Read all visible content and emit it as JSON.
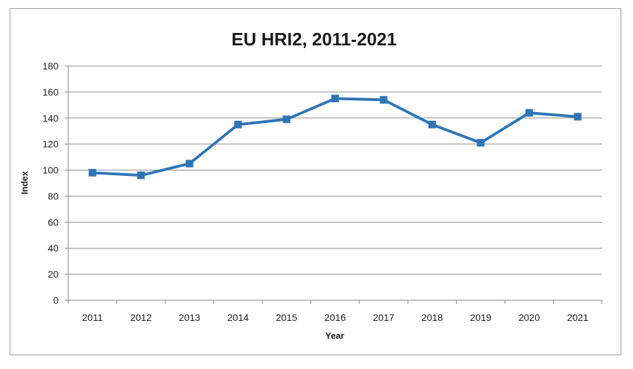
{
  "chart_data": {
    "type": "line",
    "title": "EU HRI2, 2011-2021",
    "xlabel": "Year",
    "ylabel": "Index",
    "categories": [
      "2011",
      "2012",
      "2013",
      "2014",
      "2015",
      "2016",
      "2017",
      "2018",
      "2019",
      "2020",
      "2021"
    ],
    "series": [
      {
        "values": [
          98,
          96,
          105,
          135,
          139,
          155,
          154,
          135,
          121,
          144,
          141
        ]
      }
    ],
    "ylim": [
      0,
      180
    ],
    "yticks": [
      "0",
      "20",
      "40",
      "60",
      "80",
      "100",
      "120",
      "140",
      "160",
      "180"
    ],
    "grid": "horizontal",
    "legend": "none",
    "colors": {
      "series": "#2e75b6",
      "grid": "#8c8c8c",
      "axis": "#7f7f7f"
    }
  }
}
